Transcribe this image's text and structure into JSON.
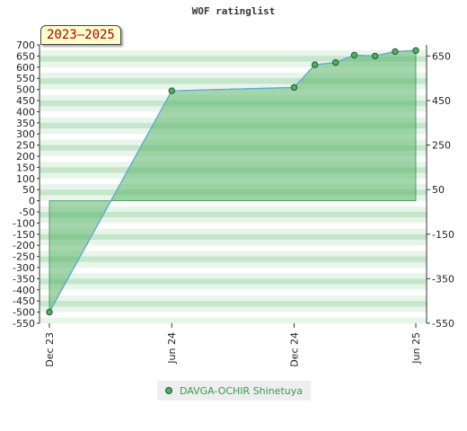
{
  "chart_data": {
    "type": "area",
    "title": "WOF ratinglist",
    "badge": "2023–2025",
    "x_ticks": [
      "Dec 23",
      "Jun 24",
      "Dec 24",
      "Jun 25"
    ],
    "x_tick_dates": [
      "2023-12-01",
      "2024-06-01",
      "2024-12-01",
      "2025-06-01"
    ],
    "xlim": [
      "2023-12-01",
      "2025-06-01"
    ],
    "ylim": [
      -550,
      700
    ],
    "y_ticks_left": [
      700,
      650,
      600,
      550,
      500,
      450,
      400,
      350,
      300,
      250,
      200,
      150,
      100,
      50,
      0,
      -50,
      -100,
      -150,
      -200,
      -250,
      -300,
      -350,
      -400,
      -450,
      -500,
      -550
    ],
    "y_ticks_right": [
      650,
      450,
      250,
      50,
      -150,
      -350,
      -550
    ],
    "grid": true,
    "legend_position": "bottom",
    "colors": {
      "line": "#5fa6d8",
      "fill": "#5ab56a",
      "marker_fill": "#4fae60",
      "marker_stroke": "#235a2f",
      "legend_text": "#3a9b4a"
    },
    "series": [
      {
        "name": "DAVGA-OCHIR Shinetuya",
        "x": [
          "2023-12-01",
          "2024-06-01",
          "2024-12-01",
          "2025-01-01",
          "2025-02-01",
          "2025-03-01",
          "2025-04-01",
          "2025-05-01",
          "2025-06-01"
        ],
        "values": [
          -500,
          494,
          509,
          611,
          621,
          654,
          650,
          670,
          675
        ]
      }
    ]
  }
}
